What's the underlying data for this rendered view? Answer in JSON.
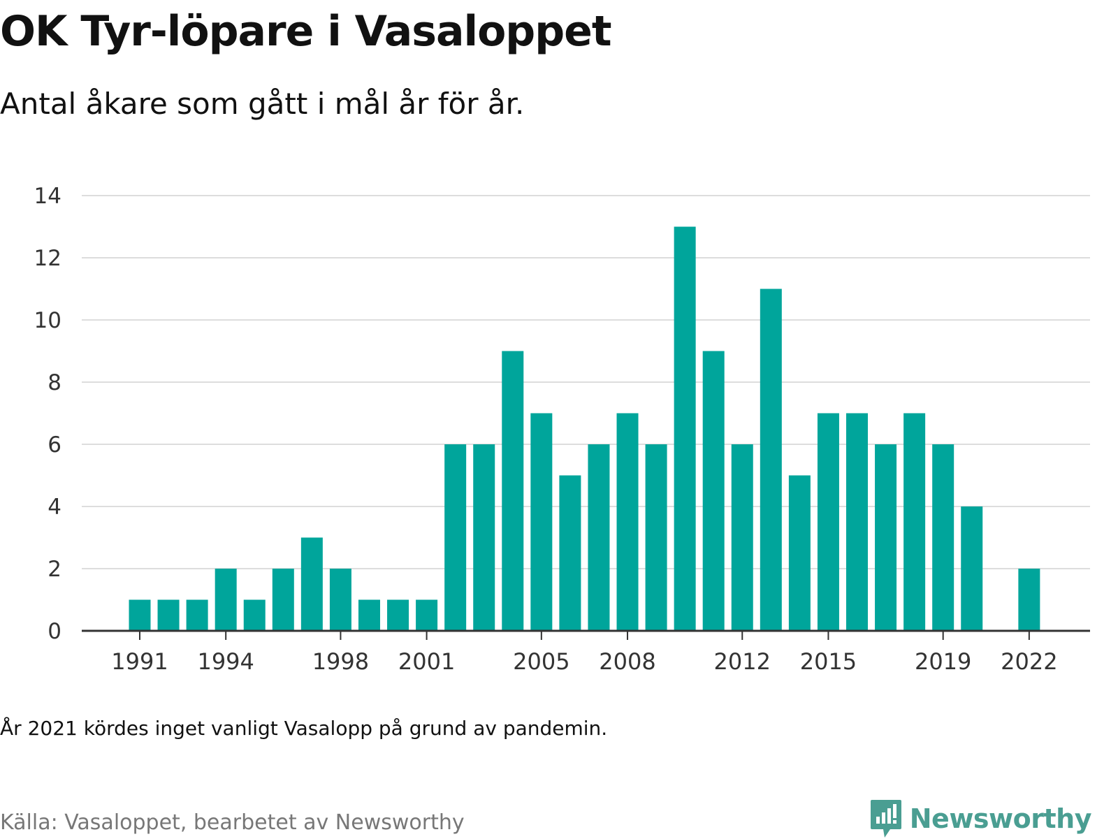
{
  "header": {
    "title": "OK Tyr-löpare i Vasaloppet",
    "subtitle": "Antal åkare som gått i mål år för år."
  },
  "footer": {
    "note": "År 2021 kördes inget vanligt Vasalopp på grund av pandemin.",
    "source": "Källa: Vasaloppet, bearbetet av Newsworthy",
    "brand": "Newsworthy",
    "brand_icon": "bar-chart-speech-bubble-icon"
  },
  "colors": {
    "bar": "#00a59b",
    "grid": "#dddddd",
    "axis": "#333333",
    "brand": "#4a9e92"
  },
  "chart_data": {
    "type": "bar",
    "title": "OK Tyr-löpare i Vasaloppet",
    "subtitle": "Antal åkare som gått i mål år för år.",
    "xlabel": "",
    "ylabel": "",
    "ylim": [
      0,
      14
    ],
    "yticks": [
      0,
      2,
      4,
      6,
      8,
      10,
      12,
      14
    ],
    "xticks": [
      1991,
      1994,
      1998,
      2001,
      2005,
      2008,
      2012,
      2015,
      2019,
      2022
    ],
    "grid": true,
    "categories": [
      1991,
      1992,
      1993,
      1994,
      1995,
      1996,
      1997,
      1998,
      1999,
      2000,
      2001,
      2002,
      2003,
      2004,
      2005,
      2006,
      2007,
      2008,
      2009,
      2010,
      2011,
      2012,
      2013,
      2014,
      2015,
      2016,
      2017,
      2018,
      2019,
      2020,
      2021,
      2022
    ],
    "values": [
      1,
      1,
      1,
      2,
      1,
      2,
      3,
      2,
      1,
      1,
      1,
      6,
      6,
      9,
      7,
      5,
      6,
      7,
      6,
      13,
      9,
      6,
      11,
      5,
      7,
      7,
      6,
      7,
      6,
      4,
      null,
      2
    ]
  }
}
